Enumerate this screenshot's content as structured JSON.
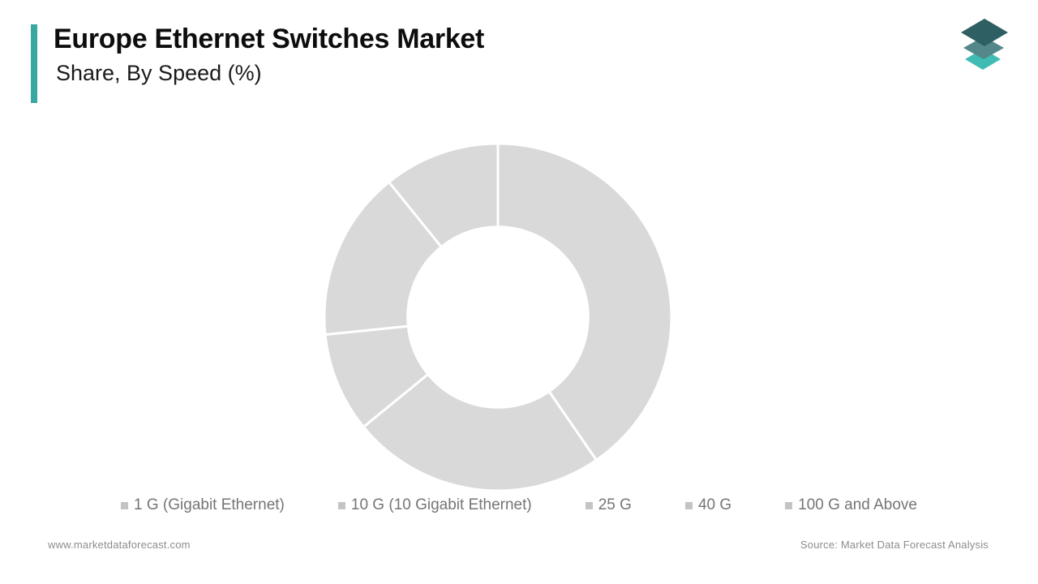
{
  "page": {
    "background": "#ffffff"
  },
  "header": {
    "title": "Europe Ethernet Switches Market",
    "subtitle": "Share, By Speed (%)",
    "accent_color": "#39A7A2"
  },
  "logo": {
    "name": "market-data-forecast-logo",
    "layer_colors": {
      "top": "#2D5F63",
      "middle": "#538789",
      "bottom": "#41BCB4"
    }
  },
  "chart_data": {
    "type": "pie",
    "variant": "donut",
    "title": "Europe Ethernet Switches Market",
    "subtitle": "Share, By Speed (%)",
    "unit": "%",
    "categories": [
      "1 G (Gigabit Ethernet)",
      "10 G (10 Gigabit Ethernet)",
      "25 G",
      "40 G",
      "100 G and Above"
    ],
    "values": [
      40.4,
      23.7,
      9.3,
      15.8,
      10.8
    ],
    "start_angle_deg": 0,
    "direction": "clockwise",
    "inner_radius_ratio": 0.52,
    "slice_color": "#D9D9D9",
    "divider_color": "#FFFFFF",
    "divider_width": 3,
    "legend_position": "bottom",
    "legend_marker_color": "#C4C4C4",
    "legend_text_color": "#757575"
  },
  "footer": {
    "website": "www.marketdataforecast.com",
    "source": "Source: Market Data Forecast Analysis"
  }
}
